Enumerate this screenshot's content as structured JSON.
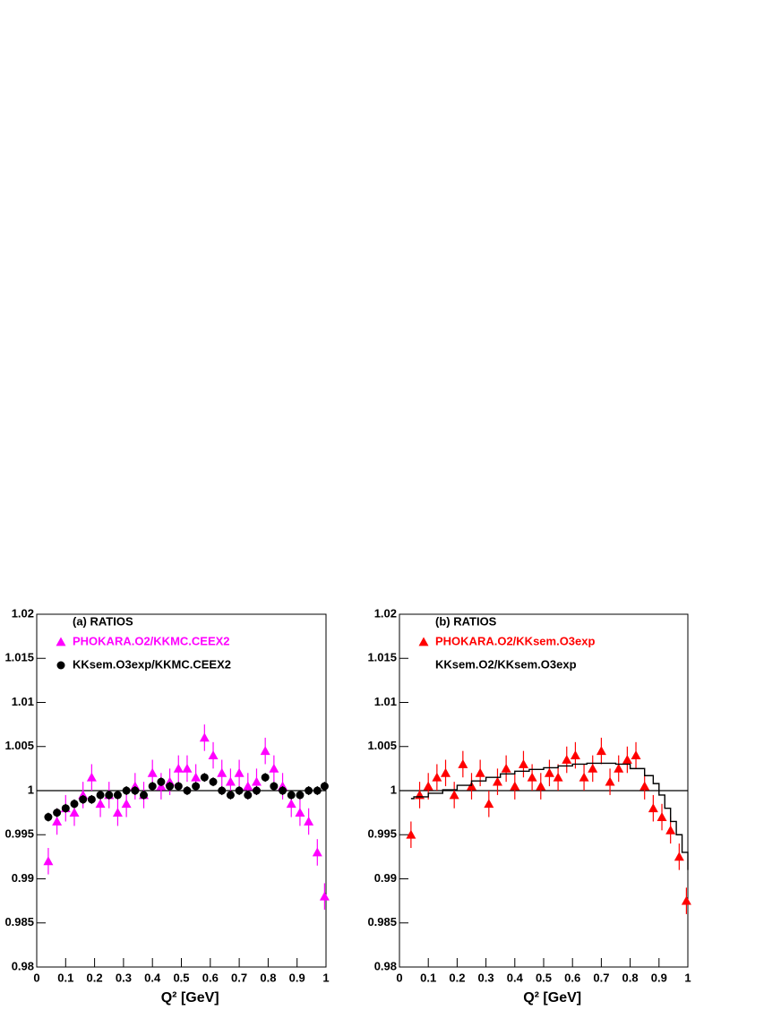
{
  "chart_data": [
    {
      "type": "scatter",
      "title": "(a) RATIOS",
      "xlabel": "Q² [GeV]",
      "xlim": [
        0,
        1
      ],
      "ylim": [
        0.98,
        1.02
      ],
      "xticks": [
        0,
        0.1,
        0.2,
        0.3,
        0.4,
        0.5,
        0.6,
        0.7,
        0.8,
        0.9,
        1
      ],
      "yticks": [
        0.98,
        0.985,
        0.99,
        0.995,
        1,
        1.005,
        1.01,
        1.015,
        1.02
      ],
      "hline": 1,
      "series": [
        {
          "name": "PHOKARA.O2/KKMC.CEEX2",
          "color": "#ff00ff",
          "marker": "triangle",
          "error": 0.0015,
          "x": [
            0.04,
            0.07,
            0.1,
            0.13,
            0.16,
            0.19,
            0.22,
            0.25,
            0.28,
            0.31,
            0.34,
            0.37,
            0.4,
            0.43,
            0.46,
            0.49,
            0.52,
            0.55,
            0.58,
            0.61,
            0.64,
            0.67,
            0.7,
            0.73,
            0.76,
            0.79,
            0.82,
            0.85,
            0.88,
            0.91,
            0.94,
            0.97,
            0.995
          ],
          "values": [
            0.992,
            0.9965,
            0.998,
            0.9975,
            0.9995,
            1.0015,
            0.9985,
            0.9995,
            0.9975,
            0.9985,
            1.0005,
            0.9995,
            1.002,
            1.0005,
            1.001,
            1.0025,
            1.0025,
            1.0015,
            1.006,
            1.004,
            1.002,
            1.001,
            1.002,
            1.0005,
            1.001,
            1.0045,
            1.0025,
            1.0005,
            0.9985,
            0.9975,
            0.9965,
            0.993,
            0.988
          ]
        },
        {
          "name": "KKsem.O3exp/KKMC.CEEX2",
          "color": "#000000",
          "marker": "circle",
          "error": 0.0005,
          "x": [
            0.04,
            0.07,
            0.1,
            0.13,
            0.16,
            0.19,
            0.22,
            0.25,
            0.28,
            0.31,
            0.34,
            0.37,
            0.4,
            0.43,
            0.46,
            0.49,
            0.52,
            0.55,
            0.58,
            0.61,
            0.64,
            0.67,
            0.7,
            0.73,
            0.76,
            0.79,
            0.82,
            0.85,
            0.88,
            0.91,
            0.94,
            0.97,
            0.995
          ],
          "values": [
            0.997,
            0.9975,
            0.998,
            0.9985,
            0.999,
            0.999,
            0.9995,
            0.9995,
            0.9995,
            1.0,
            1.0,
            0.9995,
            1.0005,
            1.001,
            1.0005,
            1.0005,
            1.0,
            1.0005,
            1.0015,
            1.001,
            1.0,
            0.9995,
            1.0,
            0.9995,
            1.0,
            1.0015,
            1.0005,
            1.0,
            0.9995,
            0.9995,
            1.0,
            1.0,
            1.0005
          ]
        }
      ]
    },
    {
      "type": "scatter",
      "title": "(b) RATIOS",
      "xlabel": "Q² [GeV]",
      "xlim": [
        0,
        1
      ],
      "ylim": [
        0.98,
        1.02
      ],
      "xticks": [
        0,
        0.1,
        0.2,
        0.3,
        0.4,
        0.5,
        0.6,
        0.7,
        0.8,
        0.9,
        1
      ],
      "yticks": [
        0.98,
        0.985,
        0.99,
        0.995,
        1,
        1.005,
        1.01,
        1.015,
        1.02
      ],
      "hline": 1,
      "series": [
        {
          "name": "PHOKARA.O2/KKsem.O3exp",
          "color": "#ff0000",
          "marker": "triangle",
          "error": 0.0015,
          "x": [
            0.04,
            0.07,
            0.1,
            0.13,
            0.16,
            0.19,
            0.22,
            0.25,
            0.28,
            0.31,
            0.34,
            0.37,
            0.4,
            0.43,
            0.46,
            0.49,
            0.52,
            0.55,
            0.58,
            0.61,
            0.64,
            0.67,
            0.7,
            0.73,
            0.76,
            0.79,
            0.82,
            0.85,
            0.88,
            0.91,
            0.94,
            0.97,
            0.995
          ],
          "values": [
            0.995,
            0.9995,
            1.0005,
            1.0015,
            1.002,
            0.9995,
            1.003,
            1.0005,
            1.002,
            0.9985,
            1.001,
            1.0025,
            1.0005,
            1.003,
            1.0015,
            1.0005,
            1.002,
            1.0015,
            1.0035,
            1.004,
            1.0015,
            1.0025,
            1.0045,
            1.001,
            1.0025,
            1.0035,
            1.004,
            1.0005,
            0.998,
            0.997,
            0.9955,
            0.9925,
            0.9875
          ]
        },
        {
          "name": "KKsem.O2/KKsem.O3exp",
          "color": "#000000",
          "marker": "none",
          "drawstyle": "steps",
          "x": [
            0.04,
            0.05,
            0.1,
            0.15,
            0.2,
            0.25,
            0.3,
            0.35,
            0.4,
            0.45,
            0.5,
            0.55,
            0.6,
            0.65,
            0.7,
            0.75,
            0.8,
            0.85,
            0.88,
            0.9,
            0.92,
            0.94,
            0.96,
            0.98,
            1.0
          ],
          "values": [
            0.9991,
            0.9993,
            0.9997,
            1.0001,
            1.0006,
            1.0011,
            1.0015,
            1.0019,
            1.0022,
            1.0024,
            1.0026,
            1.0028,
            1.003,
            1.0031,
            1.0031,
            1.003,
            1.0025,
            1.0017,
            1.0008,
            0.9995,
            0.998,
            0.9965,
            0.995,
            0.993,
            0.991
          ]
        }
      ]
    }
  ]
}
